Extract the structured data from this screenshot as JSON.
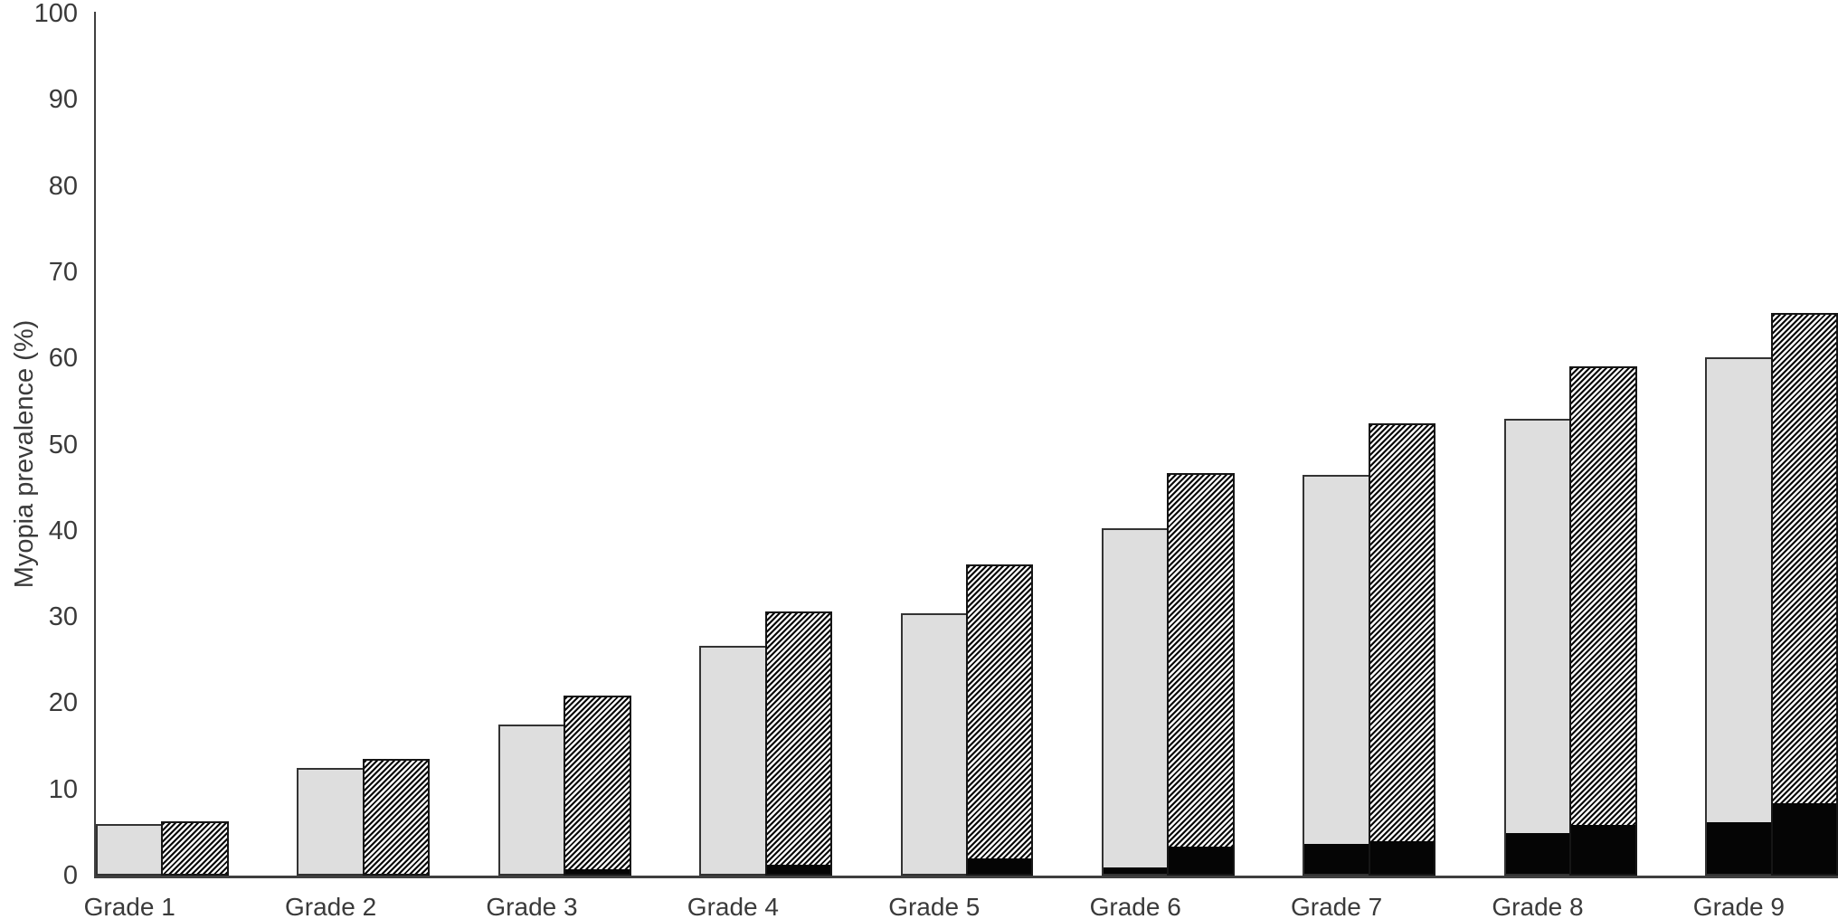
{
  "chart_data": {
    "type": "bar",
    "title": "",
    "ylabel": "Myopia prevalence (%)",
    "xlabel": "",
    "ylim": [
      0,
      100
    ],
    "yticks": [
      0,
      10,
      20,
      30,
      40,
      50,
      60,
      70,
      80,
      90,
      100
    ],
    "grid": false,
    "legend": "none shown",
    "categories": [
      "Grade 1",
      "Grade 2",
      "Grade 3",
      "Grade 4",
      "Grade 5",
      "Grade 6",
      "Grade 7",
      "Grade 8",
      "Grade 9"
    ],
    "series": [
      {
        "name": "left-bar-solid-light-gray",
        "style": "solid",
        "fill_color": "#dedede",
        "values": [
          6.0,
          12.5,
          17.5,
          26.7,
          30.4,
          40.3,
          46.5,
          53.0,
          60.1
        ],
        "black_base_values": [
          0,
          0,
          0,
          0,
          0,
          0.7,
          3.5,
          4.7,
          6.0
        ]
      },
      {
        "name": "right-bar-diagonal-hatch",
        "style": "diagonal-hatch",
        "fill_color": "black-on-white diagonal stripes",
        "values": [
          6.3,
          13.5,
          20.9,
          30.6,
          36.1,
          46.7,
          52.5,
          59.1,
          65.3
        ],
        "black_base_values": [
          0,
          0,
          0.5,
          1.0,
          1.8,
          3.2,
          3.8,
          5.7,
          8.2
        ]
      }
    ],
    "black_base_segment_color": "#050505",
    "notes": "Each grade shows a solid light-gray bar (left) and a hatched bar (right); both sit on the baseline, some with a solid black segment at the bottom."
  }
}
